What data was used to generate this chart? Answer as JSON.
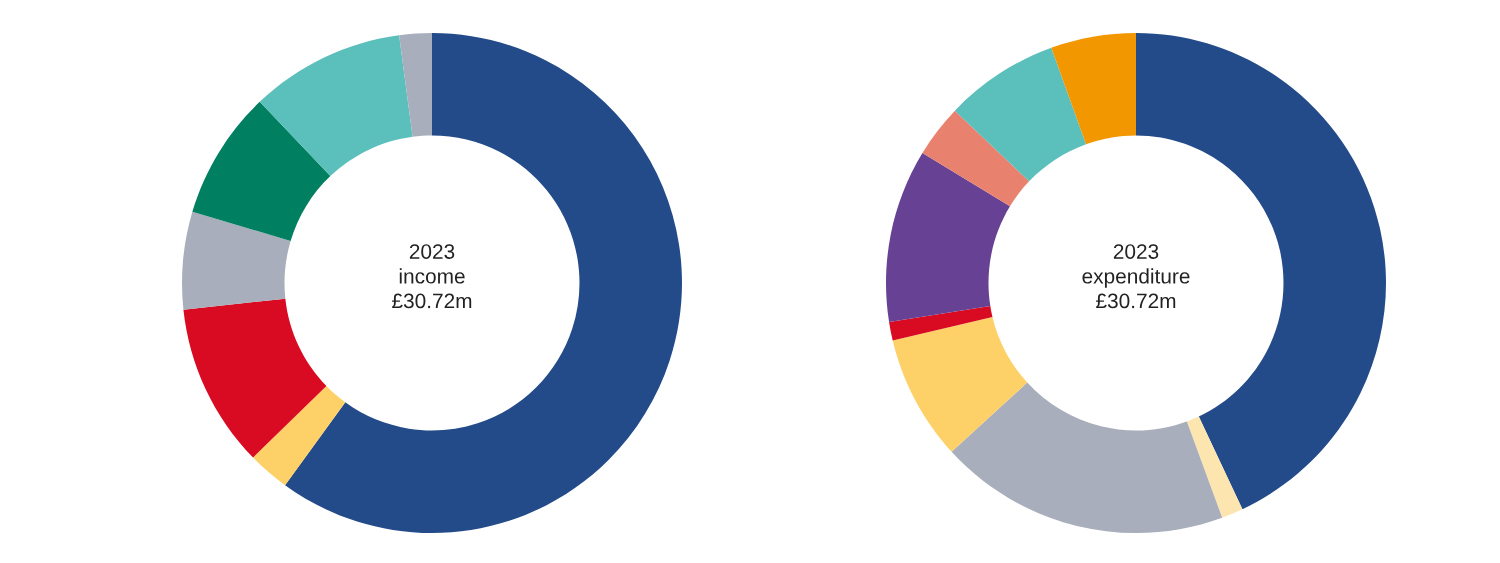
{
  "chart_data": [
    {
      "type": "donut",
      "title": "2023\nincome\n£30.72m",
      "categories": [
        null,
        null,
        null,
        null,
        null,
        null,
        null
      ],
      "values": [
        60,
        2.7,
        10.6,
        6.3,
        8.3,
        10,
        2.1
      ],
      "colors": [
        "#234b89",
        "#fdd068",
        "#d90b22",
        "#a8aebb",
        "#008060",
        "#5bbfbb",
        "#a8aebb"
      ]
    },
    {
      "type": "donut",
      "title": "2023\nexpenditure\n£30.72m",
      "categories": [
        null,
        null,
        null,
        null,
        null,
        null,
        null,
        null,
        null
      ],
      "values": [
        43,
        1.4,
        18.8,
        8.1,
        1.2,
        11.2,
        3.4,
        7.4,
        5.5
      ],
      "colors": [
        "#234b89",
        "#fde5b0",
        "#a8aebb",
        "#fdd068",
        "#d90b22",
        "#664194",
        "#e8826f",
        "#5bbfbb",
        "#f39700"
      ]
    }
  ]
}
